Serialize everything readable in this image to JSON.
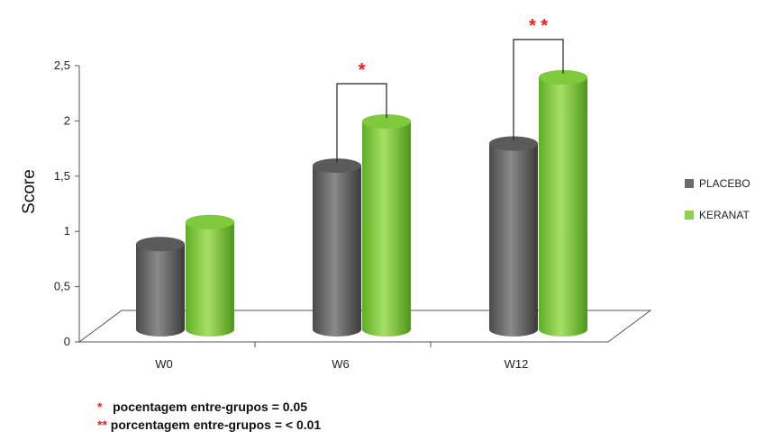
{
  "colors": {
    "placebo": "#6b6b6b",
    "keranat": "#8fd14a",
    "significance": "#ff1a1a"
  },
  "chart_data": {
    "type": "bar",
    "style": "3d-cylinder",
    "title": "",
    "xlabel": "",
    "ylabel": "Score",
    "ylim": [
      0,
      2.5
    ],
    "y_ticks": [
      "0",
      "0,5",
      "1",
      "1,5",
      "2",
      "2,5"
    ],
    "categories": [
      "W0",
      "W6",
      "W12"
    ],
    "series": [
      {
        "name": "PLACEBO",
        "values": [
          0.82,
          1.53,
          1.73
        ]
      },
      {
        "name": "KERANAT",
        "values": [
          1.02,
          1.93,
          2.33
        ]
      }
    ],
    "legend_position": "right",
    "grid": false,
    "significance": [
      {
        "category": "W0",
        "marker": ""
      },
      {
        "category": "W6",
        "marker": "*"
      },
      {
        "category": "W12",
        "marker": "**"
      }
    ]
  },
  "footnotes": [
    {
      "marker": "*",
      "text": "pocentagem entre-grupos = 0.05"
    },
    {
      "marker": "**",
      "text": "porcentagem entre-grupos = < 0.01"
    }
  ]
}
